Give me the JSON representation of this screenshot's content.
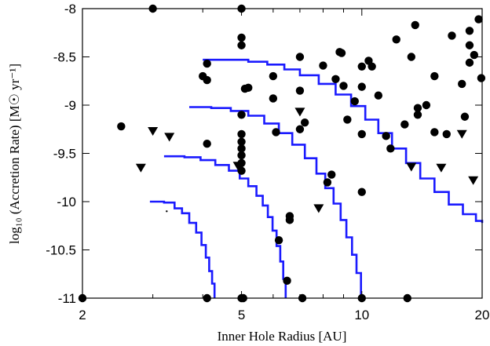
{
  "chart_data": {
    "type": "scatter",
    "xlabel": "Inner Hole Radius [AU]",
    "ylabel": "log₁₀ (Accretion Rate) [M☉ yr⁻¹]",
    "x_scale": "log",
    "xlim": [
      2,
      20
    ],
    "ylim": [
      -11,
      -8
    ],
    "x_ticks": [
      "2",
      "5",
      "10",
      "20"
    ],
    "x_tick_values": [
      2,
      5,
      10,
      20
    ],
    "y_ticks": [
      "-8",
      "-8.5",
      "-9",
      "-9.5",
      "-10",
      "-10.5",
      "-11"
    ],
    "y_tick_values": [
      -8,
      -8.5,
      -9,
      -9.5,
      -10,
      -10.5,
      -11
    ],
    "grid": false,
    "series": [
      {
        "marker": "circle",
        "color": "#000000",
        "points": [
          [
            3.0,
            -8.0
          ],
          [
            5.0,
            -8.0
          ],
          [
            5.0,
            -8.3
          ],
          [
            5.0,
            -8.38
          ],
          [
            4.0,
            -8.7
          ],
          [
            4.1,
            -8.74
          ],
          [
            4.1,
            -8.57
          ],
          [
            5.1,
            -8.83
          ],
          [
            5.2,
            -8.82
          ],
          [
            6.0,
            -8.7
          ],
          [
            7.0,
            -8.5
          ],
          [
            8.0,
            -8.59
          ],
          [
            8.6,
            -8.73
          ],
          [
            8.8,
            -8.45
          ],
          [
            8.9,
            -8.46
          ],
          [
            9.0,
            -8.8
          ],
          [
            9.2,
            -9.15
          ],
          [
            9.6,
            -8.96
          ],
          [
            10.0,
            -8.6
          ],
          [
            10.0,
            -8.81
          ],
          [
            10.0,
            -9.3
          ],
          [
            10.4,
            -8.54
          ],
          [
            10.6,
            -8.6
          ],
          [
            11.0,
            -8.9
          ],
          [
            11.5,
            -9.32
          ],
          [
            11.8,
            -9.45
          ],
          [
            12.2,
            -8.32
          ],
          [
            12.8,
            -9.2
          ],
          [
            13.3,
            -8.5
          ],
          [
            13.6,
            -8.17
          ],
          [
            13.8,
            -9.03
          ],
          [
            13.8,
            -9.1
          ],
          [
            14.5,
            -9.0
          ],
          [
            15.2,
            -9.28
          ],
          [
            15.2,
            -8.7
          ],
          [
            16.3,
            -9.3
          ],
          [
            16.8,
            -8.28
          ],
          [
            17.8,
            -8.78
          ],
          [
            18.1,
            -9.12
          ],
          [
            18.6,
            -8.38
          ],
          [
            18.6,
            -8.23
          ],
          [
            19.1,
            -8.48
          ],
          [
            19.6,
            -8.11
          ],
          [
            19.9,
            -8.72
          ],
          [
            18.6,
            -8.56
          ],
          [
            2.5,
            -9.22
          ],
          [
            4.1,
            -9.4
          ],
          [
            5.0,
            -9.1
          ],
          [
            5.0,
            -9.3
          ],
          [
            5.0,
            -9.38
          ],
          [
            5.0,
            -9.45
          ],
          [
            5.0,
            -9.52
          ],
          [
            5.0,
            -9.6
          ],
          [
            5.0,
            -9.68
          ],
          [
            6.0,
            -8.93
          ],
          [
            6.1,
            -9.28
          ],
          [
            7.0,
            -8.85
          ],
          [
            7.2,
            -9.18
          ],
          [
            7.0,
            -9.25
          ],
          [
            8.2,
            -9.8
          ],
          [
            8.4,
            -9.72
          ],
          [
            10.0,
            -9.9
          ],
          [
            6.2,
            -10.4
          ],
          [
            6.5,
            -10.82
          ],
          [
            6.6,
            -10.15
          ],
          [
            6.6,
            -10.19
          ],
          [
            2.0,
            -11.0
          ],
          [
            4.1,
            -11.0
          ],
          [
            5.0,
            -11.0
          ],
          [
            5.05,
            -11.0
          ],
          [
            7.1,
            -11.0
          ],
          [
            10.0,
            -11.0
          ],
          [
            13.0,
            -11.0
          ]
        ]
      },
      {
        "marker": "triangle-down",
        "color": "#000000",
        "points": [
          [
            2.8,
            -9.65
          ],
          [
            3.0,
            -9.27
          ],
          [
            3.3,
            -9.33
          ],
          [
            4.9,
            -9.63
          ],
          [
            7.0,
            -9.07
          ],
          [
            7.8,
            -10.07
          ],
          [
            13.3,
            -9.64
          ],
          [
            15.8,
            -9.65
          ],
          [
            17.8,
            -9.3
          ],
          [
            19.0,
            -9.78
          ],
          [
            4.95,
            -9.65
          ]
        ]
      },
      {
        "marker": "point",
        "color": "#000000",
        "points": [
          [
            3.25,
            -10.1
          ]
        ]
      }
    ],
    "curves": [
      {
        "color": "#1a1aff",
        "points": [
          [
            2.95,
            -10.0
          ],
          [
            3.2,
            -10.01
          ],
          [
            3.4,
            -10.07
          ],
          [
            3.55,
            -10.12
          ],
          [
            3.7,
            -10.22
          ],
          [
            3.85,
            -10.32
          ],
          [
            3.97,
            -10.45
          ],
          [
            4.07,
            -10.58
          ],
          [
            4.15,
            -10.72
          ],
          [
            4.22,
            -10.85
          ],
          [
            4.28,
            -11.0
          ]
        ]
      },
      {
        "color": "#1a1aff",
        "points": [
          [
            3.2,
            -9.53
          ],
          [
            3.6,
            -9.54
          ],
          [
            3.95,
            -9.57
          ],
          [
            4.3,
            -9.62
          ],
          [
            4.65,
            -9.68
          ],
          [
            4.95,
            -9.76
          ],
          [
            5.2,
            -9.84
          ],
          [
            5.45,
            -9.94
          ],
          [
            5.65,
            -10.04
          ],
          [
            5.82,
            -10.16
          ],
          [
            5.98,
            -10.3
          ],
          [
            6.12,
            -10.46
          ],
          [
            6.25,
            -10.62
          ],
          [
            6.36,
            -10.8
          ],
          [
            6.45,
            -11.0
          ]
        ]
      },
      {
        "color": "#1a1aff",
        "points": [
          [
            3.7,
            -9.02
          ],
          [
            4.2,
            -9.03
          ],
          [
            4.7,
            -9.06
          ],
          [
            5.2,
            -9.11
          ],
          [
            5.7,
            -9.19
          ],
          [
            6.2,
            -9.29
          ],
          [
            6.7,
            -9.41
          ],
          [
            7.2,
            -9.55
          ],
          [
            7.7,
            -9.71
          ],
          [
            8.1,
            -9.86
          ],
          [
            8.5,
            -10.02
          ],
          [
            8.85,
            -10.19
          ],
          [
            9.15,
            -10.37
          ],
          [
            9.45,
            -10.55
          ],
          [
            9.7,
            -10.74
          ],
          [
            9.95,
            -11.0
          ]
        ]
      },
      {
        "color": "#1a1aff",
        "points": [
          [
            4.0,
            -8.53
          ],
          [
            4.6,
            -8.53
          ],
          [
            5.2,
            -8.55
          ],
          [
            5.8,
            -8.58
          ],
          [
            6.4,
            -8.63
          ],
          [
            7.0,
            -8.69
          ],
          [
            7.8,
            -8.78
          ],
          [
            8.6,
            -8.89
          ],
          [
            9.4,
            -9.01
          ],
          [
            10.2,
            -9.15
          ],
          [
            11.0,
            -9.29
          ],
          [
            11.9,
            -9.45
          ],
          [
            12.9,
            -9.6
          ],
          [
            14.0,
            -9.76
          ],
          [
            15.2,
            -9.9
          ],
          [
            16.5,
            -10.03
          ],
          [
            17.9,
            -10.13
          ],
          [
            19.3,
            -10.2
          ],
          [
            20.0,
            -10.22
          ]
        ]
      }
    ]
  }
}
